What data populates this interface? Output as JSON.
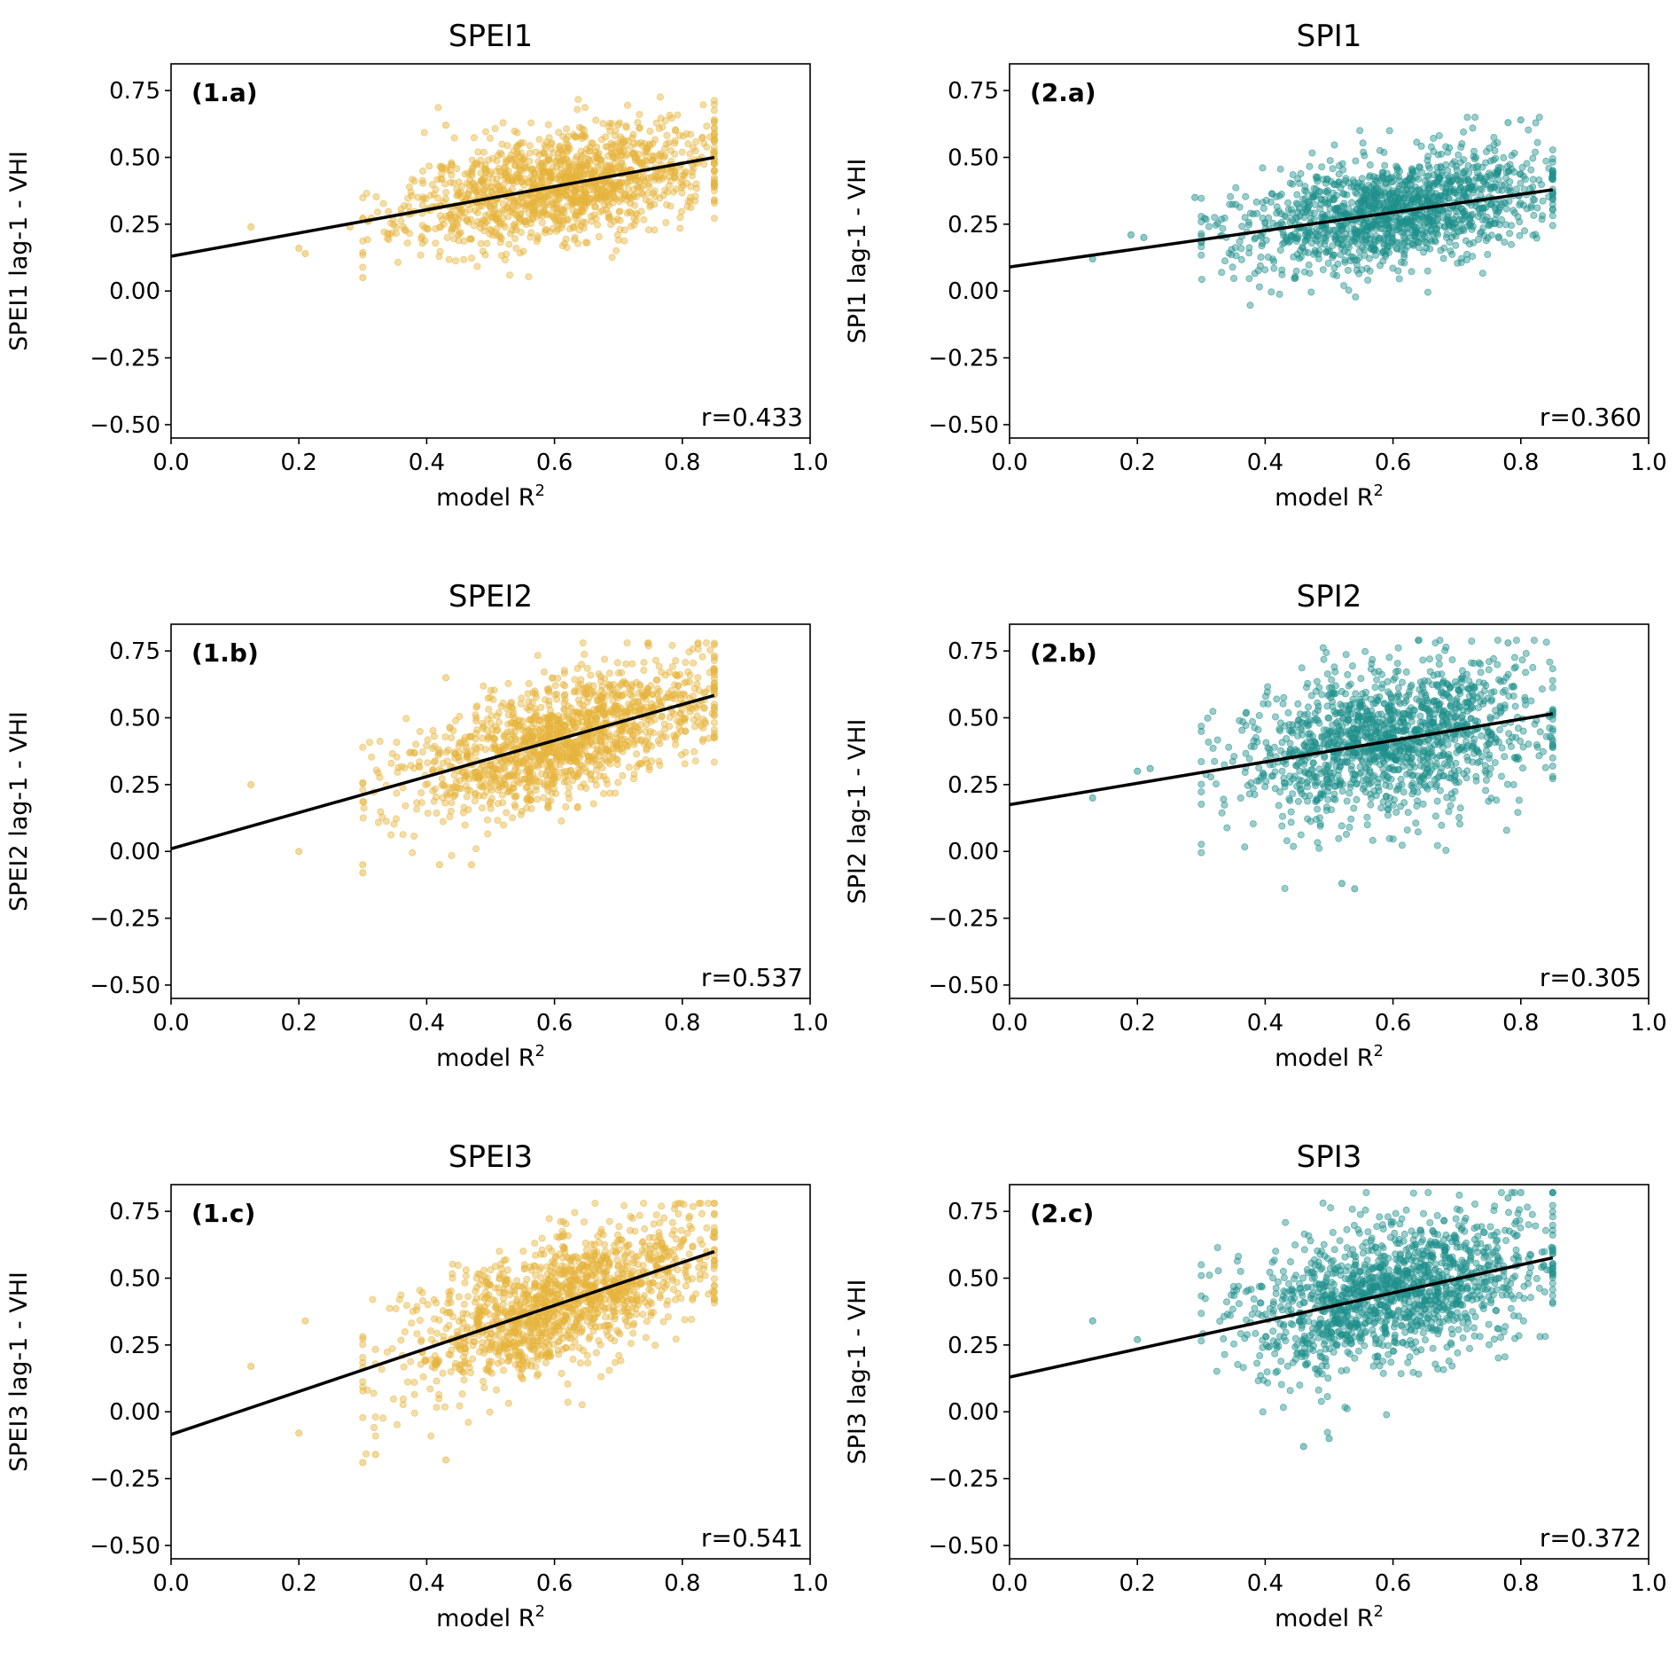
{
  "colors": {
    "spei": "#e6b43c",
    "spi": "#1f908c",
    "fit": "#000000"
  },
  "chart_data": [
    {
      "type": "scatter",
      "title": "SPEI1",
      "panel_label": "(1.a)",
      "xlabel": "model R",
      "xlabel_sup": "2",
      "ylabel": "SPEI1 lag-1 - VHI",
      "xlim": [
        0.0,
        1.0
      ],
      "ylim": [
        -0.55,
        0.85
      ],
      "xticks": [
        "0.0",
        "0.2",
        "0.4",
        "0.6",
        "0.8",
        "1.0"
      ],
      "yticks": [
        "0.75",
        "0.50",
        "0.25",
        "0.00",
        "−0.25",
        "−0.50"
      ],
      "r_label": "r=0.433",
      "series_color": "spei",
      "fit_line": {
        "intercept": 0.13,
        "slope": 0.435,
        "x_range": [
          0.0,
          0.85
        ]
      },
      "cloud": {
        "x_mean": 0.61,
        "x_sd": 0.12,
        "y_sd": 0.1,
        "y_min": 0.04,
        "y_max": 0.73,
        "n": 1400,
        "seed": 11
      },
      "outliers": [
        [
          0.125,
          0.24
        ],
        [
          0.2,
          0.16
        ],
        [
          0.21,
          0.14
        ],
        [
          0.28,
          0.24
        ],
        [
          0.3,
          0.05
        ],
        [
          0.43,
          0.62
        ]
      ]
    },
    {
      "type": "scatter",
      "title": "SPI1",
      "panel_label": "(2.a)",
      "xlabel": "model R",
      "xlabel_sup": "2",
      "ylabel": "SPI1 lag-1 - VHI",
      "xlim": [
        0.0,
        1.0
      ],
      "ylim": [
        -0.55,
        0.85
      ],
      "xticks": [
        "0.0",
        "0.2",
        "0.4",
        "0.6",
        "0.8",
        "1.0"
      ],
      "yticks": [
        "0.75",
        "0.50",
        "0.25",
        "0.00",
        "−0.25",
        "−0.50"
      ],
      "r_label": "r=0.360",
      "series_color": "spi",
      "fit_line": {
        "intercept": 0.09,
        "slope": 0.34,
        "x_range": [
          0.0,
          0.85
        ]
      },
      "cloud": {
        "x_mean": 0.6,
        "x_sd": 0.12,
        "y_sd": 0.1,
        "y_min": -0.07,
        "y_max": 0.65,
        "n": 1400,
        "seed": 23
      },
      "outliers": [
        [
          0.13,
          0.12
        ],
        [
          0.19,
          0.21
        ],
        [
          0.21,
          0.2
        ],
        [
          0.29,
          0.35
        ],
        [
          0.78,
          0.63
        ],
        [
          0.8,
          0.64
        ]
      ]
    },
    {
      "type": "scatter",
      "title": "SPEI2",
      "panel_label": "(1.b)",
      "xlabel": "model R",
      "xlabel_sup": "2",
      "ylabel": "SPEI2 lag-1 - VHI",
      "xlim": [
        0.0,
        1.0
      ],
      "ylim": [
        -0.55,
        0.85
      ],
      "xticks": [
        "0.0",
        "0.2",
        "0.4",
        "0.6",
        "0.8",
        "1.0"
      ],
      "yticks": [
        "0.75",
        "0.50",
        "0.25",
        "0.00",
        "−0.25",
        "−0.50"
      ],
      "r_label": "r=0.537",
      "series_color": "spei",
      "fit_line": {
        "intercept": 0.01,
        "slope": 0.675,
        "x_range": [
          0.0,
          0.85
        ]
      },
      "cloud": {
        "x_mean": 0.61,
        "x_sd": 0.12,
        "y_sd": 0.11,
        "y_min": -0.08,
        "y_max": 0.78,
        "n": 1400,
        "seed": 37
      },
      "outliers": [
        [
          0.125,
          0.25
        ],
        [
          0.2,
          0.0
        ],
        [
          0.3,
          -0.08
        ],
        [
          0.3,
          -0.05
        ],
        [
          0.42,
          -0.05
        ],
        [
          0.47,
          -0.05
        ],
        [
          0.43,
          0.65
        ]
      ]
    },
    {
      "type": "scatter",
      "title": "SPI2",
      "panel_label": "(2.b)",
      "xlabel": "model R",
      "xlabel_sup": "2",
      "ylabel": "SPI2 lag-1 - VHI",
      "xlim": [
        0.0,
        1.0
      ],
      "ylim": [
        -0.55,
        0.85
      ],
      "xticks": [
        "0.0",
        "0.2",
        "0.4",
        "0.6",
        "0.8",
        "1.0"
      ],
      "yticks": [
        "0.75",
        "0.50",
        "0.25",
        "0.00",
        "−0.25",
        "−0.50"
      ],
      "r_label": "r=0.305",
      "series_color": "spi",
      "fit_line": {
        "intercept": 0.175,
        "slope": 0.4,
        "x_range": [
          0.0,
          0.85
        ]
      },
      "cloud": {
        "x_mean": 0.6,
        "x_sd": 0.12,
        "y_sd": 0.14,
        "y_min": -0.14,
        "y_max": 0.79,
        "n": 1400,
        "seed": 53
      },
      "outliers": [
        [
          0.13,
          0.2
        ],
        [
          0.2,
          0.3
        ],
        [
          0.22,
          0.31
        ],
        [
          0.54,
          -0.14
        ],
        [
          0.52,
          -0.12
        ],
        [
          0.78,
          0.78
        ]
      ]
    },
    {
      "type": "scatter",
      "title": "SPEI3",
      "panel_label": "(1.c)",
      "xlabel": "model R",
      "xlabel_sup": "2",
      "ylabel": "SPEI3 lag-1 - VHI",
      "xlim": [
        0.0,
        1.0
      ],
      "ylim": [
        -0.55,
        0.85
      ],
      "xticks": [
        "0.0",
        "0.2",
        "0.4",
        "0.6",
        "0.8",
        "1.0"
      ],
      "yticks": [
        "0.75",
        "0.50",
        "0.25",
        "0.00",
        "−0.25",
        "−0.50"
      ],
      "r_label": "r=0.541",
      "series_color": "spei",
      "fit_line": {
        "intercept": -0.085,
        "slope": 0.805,
        "x_range": [
          0.0,
          0.85
        ]
      },
      "cloud": {
        "x_mean": 0.61,
        "x_sd": 0.12,
        "y_sd": 0.12,
        "y_min": -0.19,
        "y_max": 0.78,
        "n": 1400,
        "seed": 71
      },
      "outliers": [
        [
          0.125,
          0.17
        ],
        [
          0.2,
          -0.08
        ],
        [
          0.21,
          0.34
        ],
        [
          0.3,
          -0.19
        ],
        [
          0.32,
          -0.16
        ],
        [
          0.43,
          -0.18
        ]
      ]
    },
    {
      "type": "scatter",
      "title": "SPI3",
      "panel_label": "(2.c)",
      "xlabel": "model R",
      "xlabel_sup": "2",
      "ylabel": "SPI3 lag-1 - VHI",
      "xlim": [
        0.0,
        1.0
      ],
      "ylim": [
        -0.55,
        0.85
      ],
      "xticks": [
        "0.0",
        "0.2",
        "0.4",
        "0.6",
        "0.8",
        "1.0"
      ],
      "yticks": [
        "0.75",
        "0.50",
        "0.25",
        "0.00",
        "−0.25",
        "−0.50"
      ],
      "r_label": "r=0.372",
      "series_color": "spi",
      "fit_line": {
        "intercept": 0.13,
        "slope": 0.525,
        "x_range": [
          0.0,
          0.85
        ]
      },
      "cloud": {
        "x_mean": 0.6,
        "x_sd": 0.12,
        "y_sd": 0.13,
        "y_min": -0.13,
        "y_max": 0.82,
        "n": 1400,
        "seed": 89
      },
      "outliers": [
        [
          0.13,
          0.34
        ],
        [
          0.2,
          0.27
        ],
        [
          0.46,
          -0.13
        ],
        [
          0.5,
          -0.1
        ],
        [
          0.8,
          0.82
        ],
        [
          0.78,
          0.8
        ]
      ]
    }
  ]
}
